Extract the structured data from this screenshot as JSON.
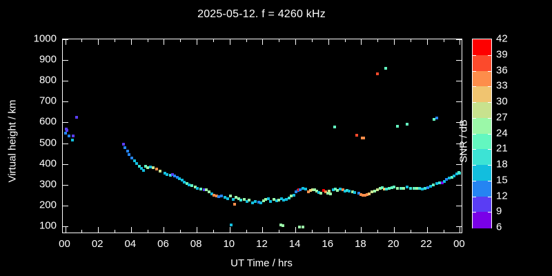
{
  "title": "2025-05-12. f = 4260 kHz",
  "axes": {
    "x": {
      "label": "UT Time / hrs",
      "tick_labels": [
        "00",
        "02",
        "04",
        "06",
        "08",
        "10",
        "12",
        "14",
        "16",
        "18",
        "20",
        "22",
        "00"
      ],
      "tick_hours": [
        0,
        2,
        4,
        6,
        8,
        10,
        12,
        14,
        16,
        18,
        20,
        22,
        24
      ],
      "minor_hours": [
        1,
        3,
        5,
        7,
        9,
        11,
        13,
        15,
        17,
        19,
        21,
        23
      ]
    },
    "y": {
      "label": "Virtual height / km",
      "tick_values": [
        100,
        200,
        300,
        400,
        500,
        600,
        700,
        800,
        900,
        1000
      ]
    }
  },
  "colorbar": {
    "label": "SNR / dB",
    "tick_values": [
      42,
      39,
      36,
      33,
      30,
      27,
      24,
      21,
      18,
      15,
      12,
      9,
      6
    ],
    "min": 6,
    "max": 42,
    "palette_low_to_high": [
      "#7a00e8",
      "#5a3df4",
      "#2584f2",
      "#12bede",
      "#3ce3d5",
      "#63f7c0",
      "#9bf8a8",
      "#c8e28e",
      "#f0c470",
      "#fd8d4b",
      "#fc4a2c",
      "#fe0000"
    ]
  },
  "style": {
    "background": "#000000",
    "foreground": "#ffffff"
  },
  "chart_data": {
    "type": "scatter",
    "title": "2025-05-12. f = 4260 kHz",
    "xlabel": "UT Time / hrs",
    "ylabel": "Virtual height / km",
    "zlabel": "SNR / dB",
    "xlim": [
      0,
      24
    ],
    "ylim": [
      70,
      1000
    ],
    "zlim": [
      6,
      42
    ],
    "grid": false,
    "marker": "square",
    "points_format": [
      "ut_hours",
      "virtual_height_km",
      "snr_db"
    ],
    "points": [
      [
        0.0,
        548,
        13
      ],
      [
        0.05,
        568,
        10
      ],
      [
        0.12,
        562,
        10
      ],
      [
        0.25,
        535,
        13
      ],
      [
        0.42,
        515,
        16
      ],
      [
        0.5,
        535,
        10
      ],
      [
        0.7,
        625,
        10
      ],
      [
        3.55,
        495,
        10
      ],
      [
        3.65,
        479,
        13
      ],
      [
        3.8,
        462,
        13
      ],
      [
        3.9,
        445,
        13
      ],
      [
        4.05,
        429,
        13
      ],
      [
        4.2,
        416,
        16
      ],
      [
        4.35,
        402,
        16
      ],
      [
        4.5,
        389,
        19
      ],
      [
        4.62,
        379,
        16
      ],
      [
        4.75,
        369,
        16
      ],
      [
        4.88,
        389,
        22
      ],
      [
        5.0,
        382,
        25
      ],
      [
        5.2,
        386,
        16
      ],
      [
        5.35,
        381,
        28
      ],
      [
        5.55,
        375,
        34
      ],
      [
        5.75,
        365,
        28
      ],
      [
        6.05,
        356,
        16
      ],
      [
        6.2,
        349,
        16
      ],
      [
        6.4,
        346,
        19
      ],
      [
        6.52,
        349,
        10
      ],
      [
        6.65,
        342,
        13
      ],
      [
        6.8,
        336,
        13
      ],
      [
        6.95,
        329,
        16
      ],
      [
        7.1,
        322,
        16
      ],
      [
        7.25,
        313,
        16
      ],
      [
        7.4,
        306,
        22
      ],
      [
        7.55,
        300,
        16
      ],
      [
        7.7,
        296,
        22
      ],
      [
        7.9,
        290,
        25
      ],
      [
        8.05,
        283,
        16
      ],
      [
        8.25,
        280,
        22
      ],
      [
        8.45,
        277,
        10
      ],
      [
        8.6,
        277,
        25
      ],
      [
        8.75,
        266,
        25
      ],
      [
        8.9,
        256,
        16
      ],
      [
        9.05,
        249,
        34
      ],
      [
        9.2,
        246,
        34
      ],
      [
        9.35,
        243,
        13
      ],
      [
        9.5,
        246,
        13
      ],
      [
        9.7,
        240,
        16
      ],
      [
        9.9,
        233,
        16
      ],
      [
        10.05,
        246,
        25
      ],
      [
        10.1,
        105,
        16
      ],
      [
        10.2,
        230,
        16
      ],
      [
        10.3,
        207,
        34
      ],
      [
        10.4,
        238,
        25
      ],
      [
        10.55,
        233,
        25
      ],
      [
        10.7,
        226,
        19
      ],
      [
        10.9,
        230,
        25
      ],
      [
        11.05,
        220,
        16
      ],
      [
        11.2,
        226,
        25
      ],
      [
        11.4,
        213,
        16
      ],
      [
        11.55,
        220,
        16
      ],
      [
        11.75,
        216,
        13
      ],
      [
        11.9,
        213,
        16
      ],
      [
        12.05,
        222,
        25
      ],
      [
        12.2,
        228,
        25
      ],
      [
        12.35,
        232,
        16
      ],
      [
        12.5,
        220,
        16
      ],
      [
        12.7,
        228,
        25
      ],
      [
        12.85,
        222,
        16
      ],
      [
        13.0,
        226,
        25
      ],
      [
        13.15,
        232,
        16
      ],
      [
        13.3,
        226,
        16
      ],
      [
        13.45,
        230,
        16
      ],
      [
        13.6,
        236,
        19
      ],
      [
        13.75,
        246,
        25
      ],
      [
        13.9,
        250,
        16
      ],
      [
        13.1,
        107,
        25
      ],
      [
        13.25,
        104,
        25
      ],
      [
        14.25,
        97,
        25
      ],
      [
        14.45,
        97,
        25
      ],
      [
        14.05,
        266,
        13
      ],
      [
        14.15,
        273,
        13
      ],
      [
        14.2,
        277,
        40
      ],
      [
        14.3,
        277,
        13
      ],
      [
        14.45,
        283,
        16
      ],
      [
        14.63,
        280,
        16
      ],
      [
        14.79,
        266,
        34
      ],
      [
        14.92,
        272,
        31
      ],
      [
        15.05,
        277,
        28
      ],
      [
        15.17,
        275,
        25
      ],
      [
        15.3,
        268,
        25
      ],
      [
        15.42,
        262,
        16
      ],
      [
        15.55,
        258,
        25
      ],
      [
        15.72,
        272,
        40
      ],
      [
        15.84,
        266,
        34
      ],
      [
        15.97,
        258,
        25
      ],
      [
        16.05,
        268,
        28
      ],
      [
        16.14,
        255,
        25
      ],
      [
        16.3,
        277,
        16
      ],
      [
        16.43,
        280,
        22
      ],
      [
        16.56,
        272,
        25
      ],
      [
        16.73,
        280,
        16
      ],
      [
        16.89,
        275,
        34
      ],
      [
        17.02,
        268,
        16
      ],
      [
        17.14,
        272,
        19
      ],
      [
        17.27,
        268,
        16
      ],
      [
        17.48,
        266,
        25
      ],
      [
        17.6,
        262,
        16
      ],
      [
        17.86,
        258,
        13
      ],
      [
        17.98,
        252,
        34
      ],
      [
        18.1,
        249,
        34
      ],
      [
        18.22,
        249,
        34
      ],
      [
        18.34,
        252,
        34
      ],
      [
        18.5,
        256,
        31
      ],
      [
        18.65,
        266,
        28
      ],
      [
        18.82,
        268,
        25
      ],
      [
        19.0,
        276,
        28
      ],
      [
        19.15,
        282,
        25
      ],
      [
        19.28,
        286,
        22
      ],
      [
        19.42,
        280,
        31
      ],
      [
        19.55,
        279,
        19
      ],
      [
        19.7,
        283,
        22
      ],
      [
        19.85,
        286,
        22
      ],
      [
        20.0,
        288,
        22
      ],
      [
        20.2,
        284,
        25
      ],
      [
        20.4,
        281,
        22
      ],
      [
        20.6,
        284,
        25
      ],
      [
        20.8,
        289,
        16
      ],
      [
        21.0,
        284,
        19
      ],
      [
        21.2,
        281,
        22
      ],
      [
        21.4,
        284,
        25
      ],
      [
        21.55,
        281,
        19
      ],
      [
        21.7,
        278,
        16
      ],
      [
        21.9,
        284,
        19
      ],
      [
        22.05,
        287,
        13
      ],
      [
        22.2,
        293,
        16
      ],
      [
        22.4,
        299,
        22
      ],
      [
        22.6,
        306,
        16
      ],
      [
        22.75,
        310,
        19
      ],
      [
        22.93,
        310,
        7
      ],
      [
        23.05,
        316,
        16
      ],
      [
        23.2,
        326,
        13
      ],
      [
        23.35,
        331,
        16
      ],
      [
        23.5,
        336,
        22
      ],
      [
        23.65,
        342,
        16
      ],
      [
        23.8,
        352,
        16
      ],
      [
        23.92,
        358,
        22
      ],
      [
        24.0,
        355,
        19
      ],
      [
        16.4,
        578,
        22
      ],
      [
        17.73,
        540,
        37
      ],
      [
        18.05,
        524,
        34
      ],
      [
        18.17,
        524,
        34
      ],
      [
        19.0,
        834,
        37
      ],
      [
        19.5,
        860,
        22
      ],
      [
        20.2,
        580,
        22
      ],
      [
        20.8,
        590,
        22
      ],
      [
        22.42,
        615,
        22
      ],
      [
        22.6,
        620,
        13
      ]
    ]
  }
}
